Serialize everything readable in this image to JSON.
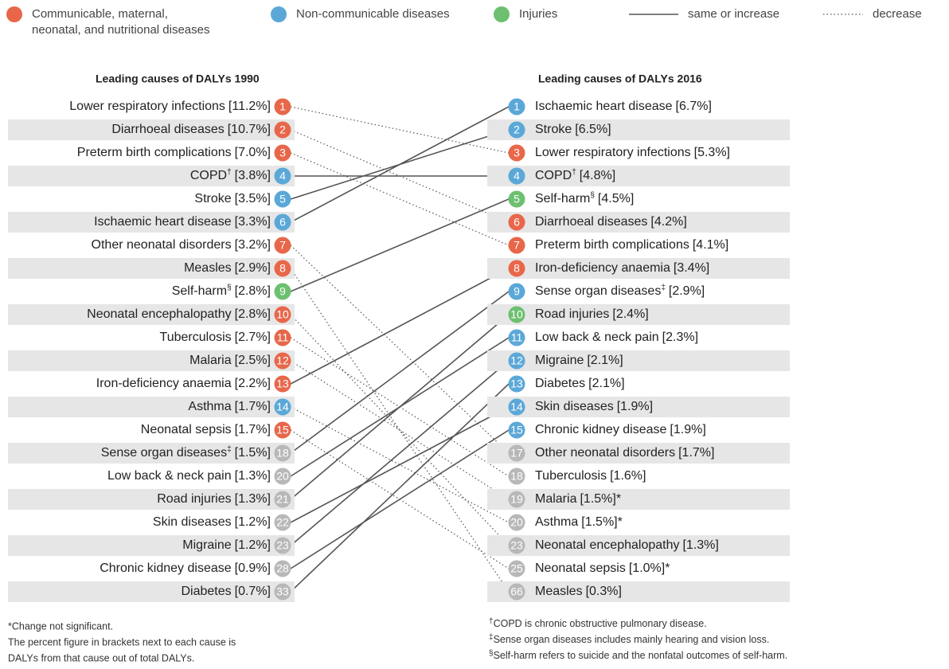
{
  "legend": {
    "groups": [
      {
        "key": "communicable",
        "lines": [
          "Communicable, maternal,",
          "neonatal, and nutritional diseases"
        ]
      },
      {
        "key": "ncd",
        "lines": [
          "Non-communicable diseases"
        ]
      },
      {
        "key": "injuries",
        "lines": [
          "Injuries"
        ]
      }
    ],
    "solid": "same or increase",
    "dotted": "decrease"
  },
  "colors": {
    "communicable": "#e8674a",
    "ncd": "#5ba8d8",
    "injuries": "#6cc070",
    "grey": "#b8b8b8"
  },
  "left": {
    "title": "Leading causes of DALYs 1990",
    "items": [
      {
        "rank": 1,
        "cause": "Lower respiratory infections",
        "share": "[11.2%]",
        "group": "communicable"
      },
      {
        "rank": 2,
        "cause": "Diarrhoeal diseases",
        "share": "[10.7%]",
        "group": "communicable"
      },
      {
        "rank": 3,
        "cause": "Preterm birth complications",
        "share": "[7.0%]",
        "group": "communicable"
      },
      {
        "rank": 4,
        "cause": "COPD",
        "mark": "†",
        "share": "[3.8%]",
        "group": "ncd"
      },
      {
        "rank": 5,
        "cause": "Stroke",
        "share": "[3.5%]",
        "group": "ncd"
      },
      {
        "rank": 6,
        "cause": "Ischaemic heart disease",
        "share": "[3.3%]",
        "group": "ncd"
      },
      {
        "rank": 7,
        "cause": "Other neonatal disorders",
        "share": "[3.2%]",
        "group": "communicable"
      },
      {
        "rank": 8,
        "cause": "Measles",
        "share": "[2.9%]",
        "group": "communicable"
      },
      {
        "rank": 9,
        "cause": "Self-harm",
        "mark": "§",
        "share": "[2.8%]",
        "group": "injuries"
      },
      {
        "rank": 10,
        "cause": "Neonatal encephalopathy",
        "share": "[2.8%]",
        "group": "communicable"
      },
      {
        "rank": 11,
        "cause": "Tuberculosis",
        "share": "[2.7%]",
        "group": "communicable"
      },
      {
        "rank": 12,
        "cause": "Malaria",
        "share": "[2.5%]",
        "group": "communicable"
      },
      {
        "rank": 13,
        "cause": "Iron-deficiency anaemia",
        "share": "[2.2%]",
        "group": "communicable"
      },
      {
        "rank": 14,
        "cause": "Asthma",
        "share": "[1.7%]",
        "group": "ncd"
      },
      {
        "rank": 15,
        "cause": "Neonatal sepsis",
        "share": "[1.7%]",
        "group": "communicable"
      },
      {
        "rank": 18,
        "cause": "Sense organ diseases",
        "mark": "‡",
        "share": "[1.5%]",
        "group": "grey"
      },
      {
        "rank": 20,
        "cause": "Low back & neck pain",
        "share": "[1.3%]",
        "group": "grey"
      },
      {
        "rank": 21,
        "cause": "Road injuries",
        "share": "[1.3%]",
        "group": "grey"
      },
      {
        "rank": 22,
        "cause": "Skin diseases",
        "share": "[1.2%]",
        "group": "grey"
      },
      {
        "rank": 23,
        "cause": "Migraine",
        "share": "[1.2%]",
        "group": "grey"
      },
      {
        "rank": 28,
        "cause": "Chronic kidney disease",
        "share": "[0.9%]",
        "group": "grey"
      },
      {
        "rank": 33,
        "cause": "Diabetes",
        "share": "[0.7%]",
        "group": "grey"
      }
    ]
  },
  "right": {
    "title": "Leading causes of DALYs 2016",
    "items": [
      {
        "rank": 1,
        "cause": "Ischaemic heart disease",
        "share": "[6.7%]",
        "group": "ncd"
      },
      {
        "rank": 2,
        "cause": "Stroke",
        "share": "[6.5%]",
        "group": "ncd"
      },
      {
        "rank": 3,
        "cause": "Lower respiratory infections",
        "share": "[5.3%]",
        "group": "communicable"
      },
      {
        "rank": 4,
        "cause": "COPD",
        "mark": "†",
        "share": "[4.8%]",
        "group": "ncd"
      },
      {
        "rank": 5,
        "cause": "Self-harm",
        "mark": "§",
        "share": "[4.5%]",
        "group": "injuries"
      },
      {
        "rank": 6,
        "cause": "Diarrhoeal diseases",
        "share": "[4.2%]",
        "group": "communicable"
      },
      {
        "rank": 7,
        "cause": "Preterm birth complications",
        "share": "[4.1%]",
        "group": "communicable"
      },
      {
        "rank": 8,
        "cause": "Iron-deficiency anaemia",
        "share": "[3.4%]",
        "group": "communicable"
      },
      {
        "rank": 9,
        "cause": "Sense organ diseases",
        "mark": "‡",
        "share": "[2.9%]",
        "group": "ncd"
      },
      {
        "rank": 10,
        "cause": "Road injuries",
        "share": "[2.4%]",
        "group": "injuries"
      },
      {
        "rank": 11,
        "cause": "Low back & neck pain",
        "share": "[2.3%]",
        "group": "ncd"
      },
      {
        "rank": 12,
        "cause": "Migraine",
        "share": "[2.1%]",
        "group": "ncd"
      },
      {
        "rank": 13,
        "cause": "Diabetes",
        "share": "[2.1%]",
        "group": "ncd"
      },
      {
        "rank": 14,
        "cause": "Skin diseases",
        "share": "[1.9%]",
        "group": "ncd"
      },
      {
        "rank": 15,
        "cause": "Chronic kidney disease",
        "share": "[1.9%]",
        "group": "ncd"
      },
      {
        "rank": 17,
        "cause": "Other neonatal disorders",
        "share": "[1.7%]",
        "group": "grey"
      },
      {
        "rank": 18,
        "cause": "Tuberculosis",
        "share": "[1.6%]",
        "group": "grey"
      },
      {
        "rank": 19,
        "cause": "Malaria",
        "share": "[1.5%]*",
        "group": "grey"
      },
      {
        "rank": 20,
        "cause": "Asthma",
        "share": "[1.5%]*",
        "group": "grey"
      },
      {
        "rank": 23,
        "cause": "Neonatal encephalopathy",
        "share": "[1.3%]",
        "group": "grey"
      },
      {
        "rank": 25,
        "cause": "Neonatal sepsis",
        "share": "[1.0%]*",
        "group": "grey"
      },
      {
        "rank": 66,
        "cause": "Measles",
        "share": "[0.3%]",
        "group": "grey"
      }
    ]
  },
  "notes": {
    "left": [
      "*Change not significant.",
      "The percent figure in brackets next to each cause is",
      "DALYs from that cause out of total DALYs."
    ],
    "right": [
      {
        "mark": "†",
        "text": "COPD is chronic obstructive pulmonary disease."
      },
      {
        "mark": "‡",
        "text": "Sense organ diseases includes mainly hearing and vision loss."
      },
      {
        "mark": "§",
        "text": "Self-harm refers to suicide and the nonfatal outcomes of self-harm."
      }
    ]
  }
}
